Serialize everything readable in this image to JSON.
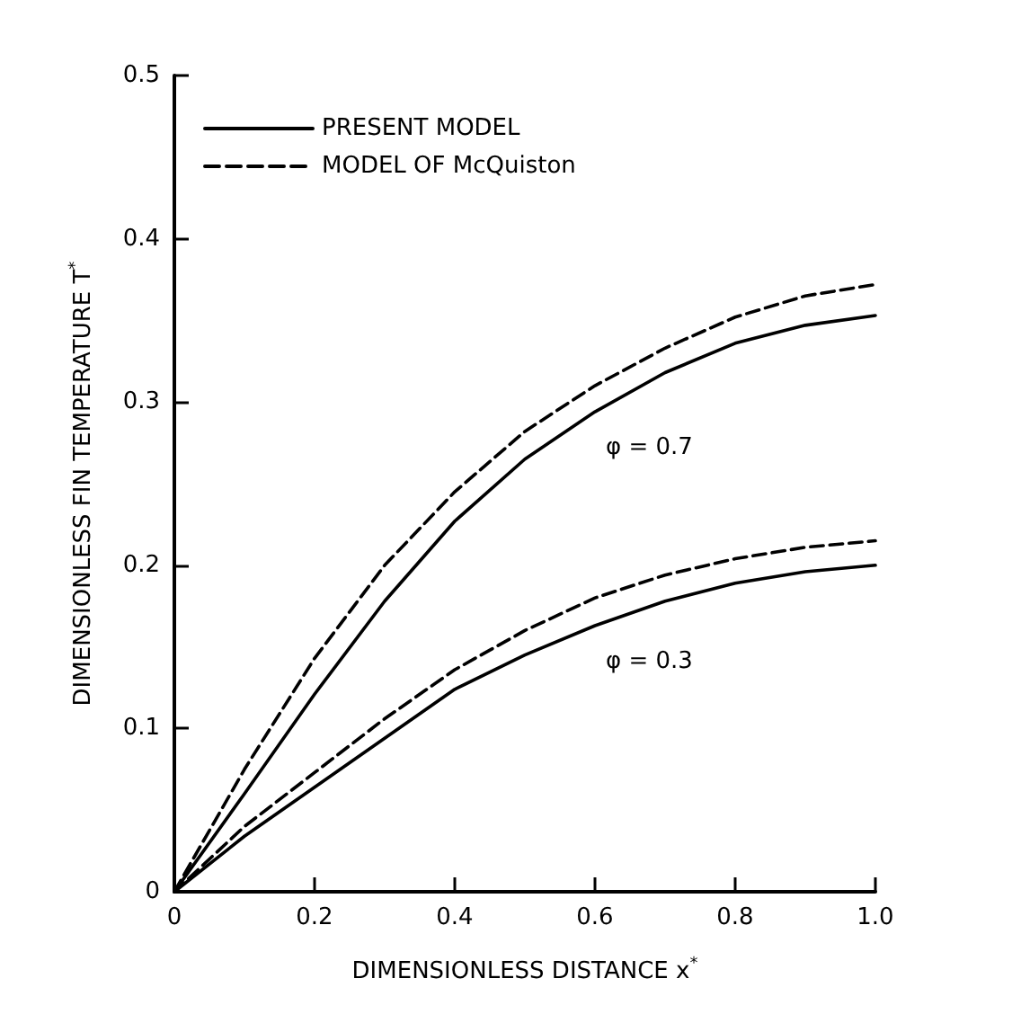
{
  "chart_data": {
    "type": "line",
    "xlabel": "DIMENSIONLESS DISTANCE x$^{*}$",
    "ylabel": "DIMENSIONLESS FIN TEMPERATURE T$^{*}$",
    "x": [
      0,
      0.1,
      0.2,
      0.3,
      0.4,
      0.5,
      0.6,
      0.7,
      0.8,
      0.9,
      1.0
    ],
    "series": [
      {
        "name": "PRESENT MODEL",
        "color": "#000000",
        "line_style": "solid",
        "values": [
          0,
          0.06,
          0.121,
          0.178,
          0.227,
          0.265,
          0.294,
          0.318,
          0.336,
          0.347,
          0.353
        ]
      },
      {
        "name": "MODEL OF McQuiston",
        "color": "#000000",
        "line_style": "dashed",
        "values": [
          0,
          0.075,
          0.143,
          0.2,
          0.245,
          0.282,
          0.31,
          0.333,
          0.352,
          0.365,
          0.372
        ]
      },
      {
        "color": "#000000",
        "line_style": "solid",
        "values": [
          0,
          0.034,
          0.064,
          0.094,
          0.124,
          0.145,
          0.163,
          0.178,
          0.189,
          0.196,
          0.2
        ]
      },
      {
        "color": "#000000",
        "line_style": "dashed",
        "values": [
          0,
          0.04,
          0.073,
          0.106,
          0.136,
          0.16,
          0.18,
          0.194,
          0.204,
          0.211,
          0.215
        ]
      }
    ],
    "xlim": [
      0,
      1.0
    ],
    "xticks": [
      0,
      0.2,
      0.4,
      0.6,
      0.8,
      {
        "value": 1.0,
        "label": "1.0"
      }
    ],
    "ylim": [
      0,
      0.5
    ],
    "yticks": [
      0,
      0.1,
      0.2,
      0.3,
      0.4,
      0.5
    ],
    "annotations": [
      {
        "text": "φ = 0.7",
        "x": 0.6,
        "y": 0.294
      },
      {
        "text": "φ = 0.3",
        "x": 0.6,
        "y": 0.163
      }
    ],
    "grid": false,
    "legend": "top left",
    "marker": "none"
  }
}
